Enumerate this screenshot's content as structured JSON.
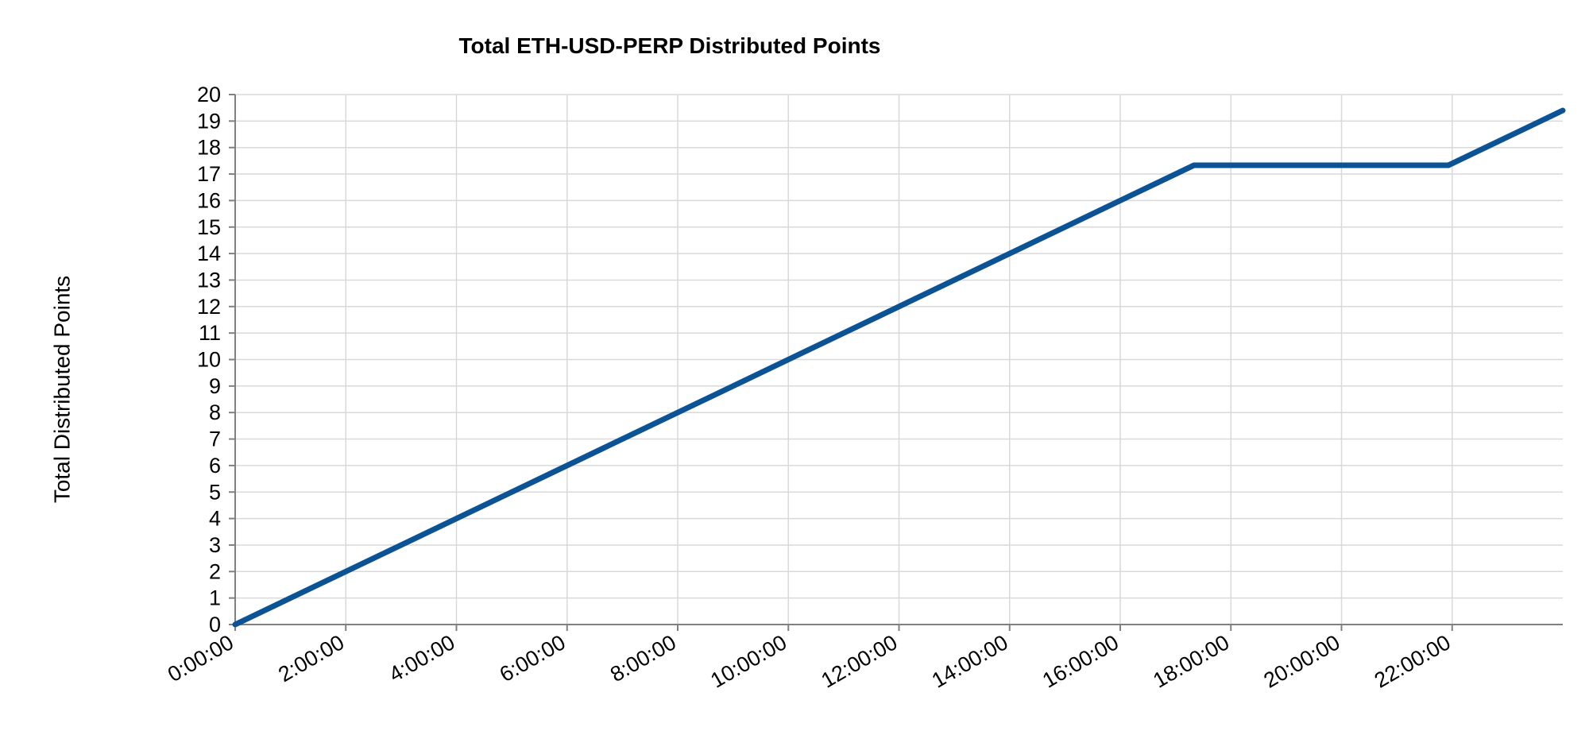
{
  "chart_data": {
    "type": "line",
    "title": "Total ETH-USD-PERP Distributed Points",
    "xlabel": "",
    "ylabel": "Total Distributed Points",
    "x_tick_labels": [
      "0:00:00",
      "2:00:00",
      "4:00:00",
      "6:00:00",
      "8:00:00",
      "10:00:00",
      "12:00:00",
      "14:00:00",
      "16:00:00",
      "18:00:00",
      "20:00:00",
      "22:00:00"
    ],
    "x_tick_hours": [
      0,
      2,
      4,
      6,
      8,
      10,
      12,
      14,
      16,
      18,
      20,
      22
    ],
    "xlim_hours": [
      0,
      24
    ],
    "ylim": [
      0,
      20
    ],
    "y_ticks": [
      0,
      1,
      2,
      3,
      4,
      5,
      6,
      7,
      8,
      9,
      10,
      11,
      12,
      13,
      14,
      15,
      16,
      17,
      18,
      19,
      20
    ],
    "grid": true,
    "legend": "none",
    "series": [
      {
        "color": "#0b5394",
        "x_hours": [
          0,
          17.33,
          21.93,
          24
        ],
        "values": [
          0,
          17.33,
          17.33,
          19.4
        ]
      }
    ]
  }
}
